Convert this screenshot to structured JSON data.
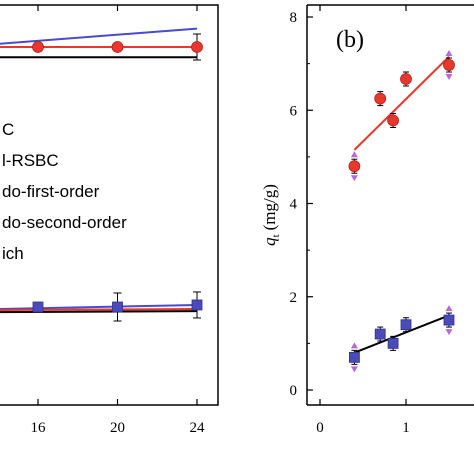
{
  "chart_data": [
    {
      "panel": "left",
      "type": "line",
      "x_ticks": [
        "16",
        "20",
        "24"
      ],
      "legend": [
        "C",
        "l-RSBC",
        "do-first-order",
        "do-second-order",
        "ich"
      ],
      "series": [
        {
          "marker": "circle",
          "color": "#e8382e",
          "x": [
            16,
            20,
            24
          ],
          "y": [
            3.02,
            3.02,
            3.02
          ]
        },
        {
          "marker": "square",
          "color": "#4a4ab8",
          "x": [
            16,
            20,
            24
          ],
          "y": [
            0.48,
            0.48,
            0.5
          ]
        }
      ],
      "fit_lines": [
        {
          "color": "#4a4acc",
          "x": [
            14,
            24
          ],
          "y": [
            3.05,
            3.2
          ]
        },
        {
          "color": "#e8382e",
          "x": [
            14,
            24
          ],
          "y": [
            3.02,
            3.02
          ]
        },
        {
          "color": "#000000",
          "x": [
            14,
            24
          ],
          "y": [
            2.92,
            2.92
          ]
        },
        {
          "color": "#4a4acc",
          "x": [
            14,
            24
          ],
          "y": [
            0.46,
            0.5
          ]
        },
        {
          "color": "#e8382e",
          "x": [
            14,
            24
          ],
          "y": [
            0.45,
            0.46
          ]
        },
        {
          "color": "#000000",
          "x": [
            14,
            24
          ],
          "y": [
            0.43,
            0.44
          ]
        }
      ],
      "xlim": [
        14,
        24.6
      ]
    },
    {
      "panel": "right",
      "label": "(b)",
      "type": "scatter",
      "ylabel": "q_t (mg/g)",
      "ylabel_main": "q",
      "ylabel_sub": "t",
      "ylabel_unit": "(mg/g)",
      "y_ticks": [
        "0",
        "2",
        "4",
        "6",
        "8"
      ],
      "x_ticks": [
        "0",
        "1"
      ],
      "ylim": [
        -0.4,
        8.2
      ],
      "xlim": [
        -0.2,
        1.85
      ],
      "series": [
        {
          "marker": "circle",
          "color": "#e8382e",
          "x": [
            0.4,
            0.7,
            0.85,
            1.0,
            1.5
          ],
          "y": [
            4.8,
            6.25,
            5.78,
            6.67,
            6.97
          ]
        },
        {
          "marker": "square",
          "color": "#4a4ab8",
          "x": [
            0.4,
            0.7,
            0.85,
            1.0,
            1.5
          ],
          "y": [
            0.7,
            1.2,
            1.0,
            1.4,
            1.5
          ]
        }
      ],
      "fit_lines": [
        {
          "color": "#e8382e",
          "x": [
            0.4,
            1.5
          ],
          "y": [
            5.15,
            7.15
          ]
        },
        {
          "color": "#000000",
          "x": [
            0.4,
            1.5
          ],
          "y": [
            0.8,
            1.6
          ]
        }
      ]
    }
  ]
}
